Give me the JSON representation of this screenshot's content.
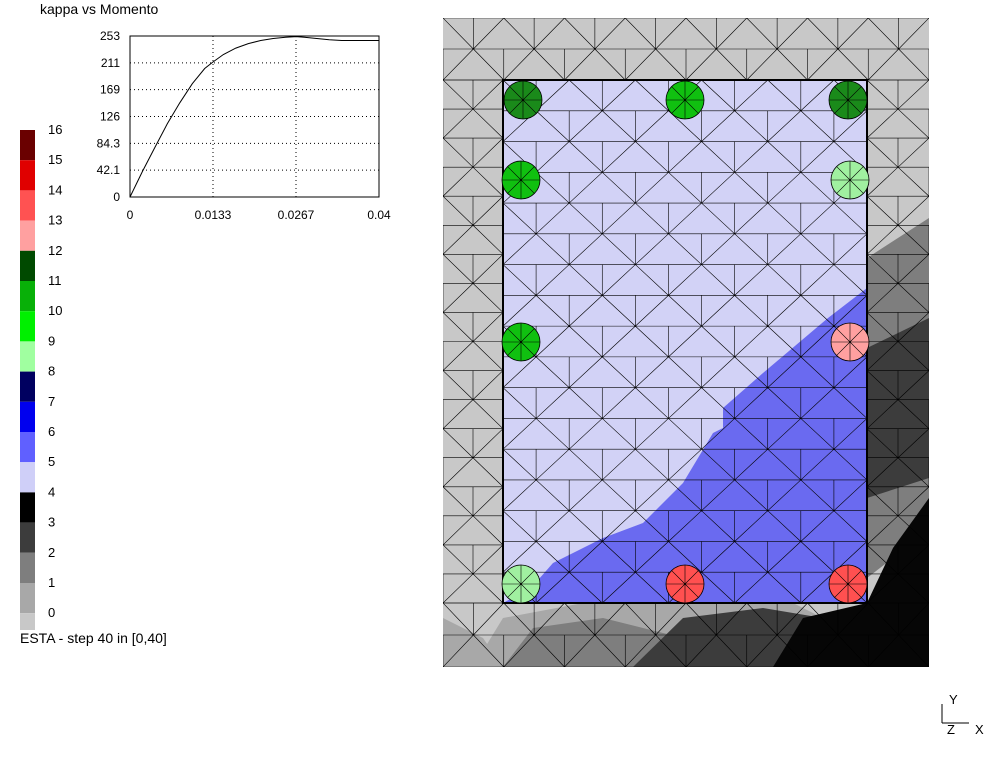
{
  "plot": {
    "title": "kappa vs Momento",
    "chart_data": {
      "type": "line",
      "title": "kappa vs Momento",
      "xlabel": "",
      "ylabel": "",
      "xlim": [
        0,
        0.04
      ],
      "ylim": [
        0,
        253
      ],
      "x_ticks": [
        "0",
        "0.0133",
        "0.0267",
        "0.04"
      ],
      "y_ticks": [
        "0",
        "42.1",
        "84.3",
        "126",
        "169",
        "211",
        "253"
      ],
      "grid": true,
      "series": [
        {
          "x": [
            0,
            0.002,
            0.004,
            0.006,
            0.008,
            0.01,
            0.012,
            0.0133,
            0.015,
            0.017,
            0.019,
            0.021,
            0.023,
            0.025,
            0.0267,
            0.028,
            0.03,
            0.032,
            0.034,
            0.036,
            0.038,
            0.04
          ],
          "y": [
            0,
            40,
            78,
            115,
            148,
            178,
            202,
            212,
            224,
            234,
            241,
            246,
            249,
            251,
            252,
            251,
            249,
            247,
            246,
            246,
            246,
            246
          ]
        }
      ]
    }
  },
  "legend": {
    "labels": [
      "16",
      "15",
      "14",
      "13",
      "12",
      "11",
      "10",
      "9",
      "8",
      "7",
      "6",
      "5",
      "4",
      "3",
      "2",
      "1",
      "0"
    ],
    "colors": [
      "#6a0000",
      "#e00000",
      "#ff5252",
      "#ffa0a0",
      "#004a00",
      "#08b008",
      "#00f000",
      "#a0ffa0",
      "#000060",
      "#0000ee",
      "#6060ff",
      "#cfcff8",
      "#000000",
      "#3c3c3c",
      "#7e7e7e",
      "#a8a8a8",
      "#c8c8c8"
    ]
  },
  "status": {
    "text": "ESTA - step 40 in [0,40]"
  },
  "mesh": {
    "colors": {
      "cover": "#c8c8c8",
      "core_light": "#d2d2f6",
      "core_blue": "#6a6af0",
      "gray1": "#a8a8a8",
      "gray2": "#7e7e7e",
      "gray3": "#3c3c3c",
      "black": "#060606",
      "bar_dark_green": "#1a8a1a",
      "bar_green": "#10c010",
      "bar_light_green": "#a0f0a0",
      "bar_pink": "#ffa0a0",
      "bar_red": "#ff5050"
    }
  },
  "axes": {
    "y_label": "Y",
    "z_label": "Z",
    "x_label": "X"
  }
}
